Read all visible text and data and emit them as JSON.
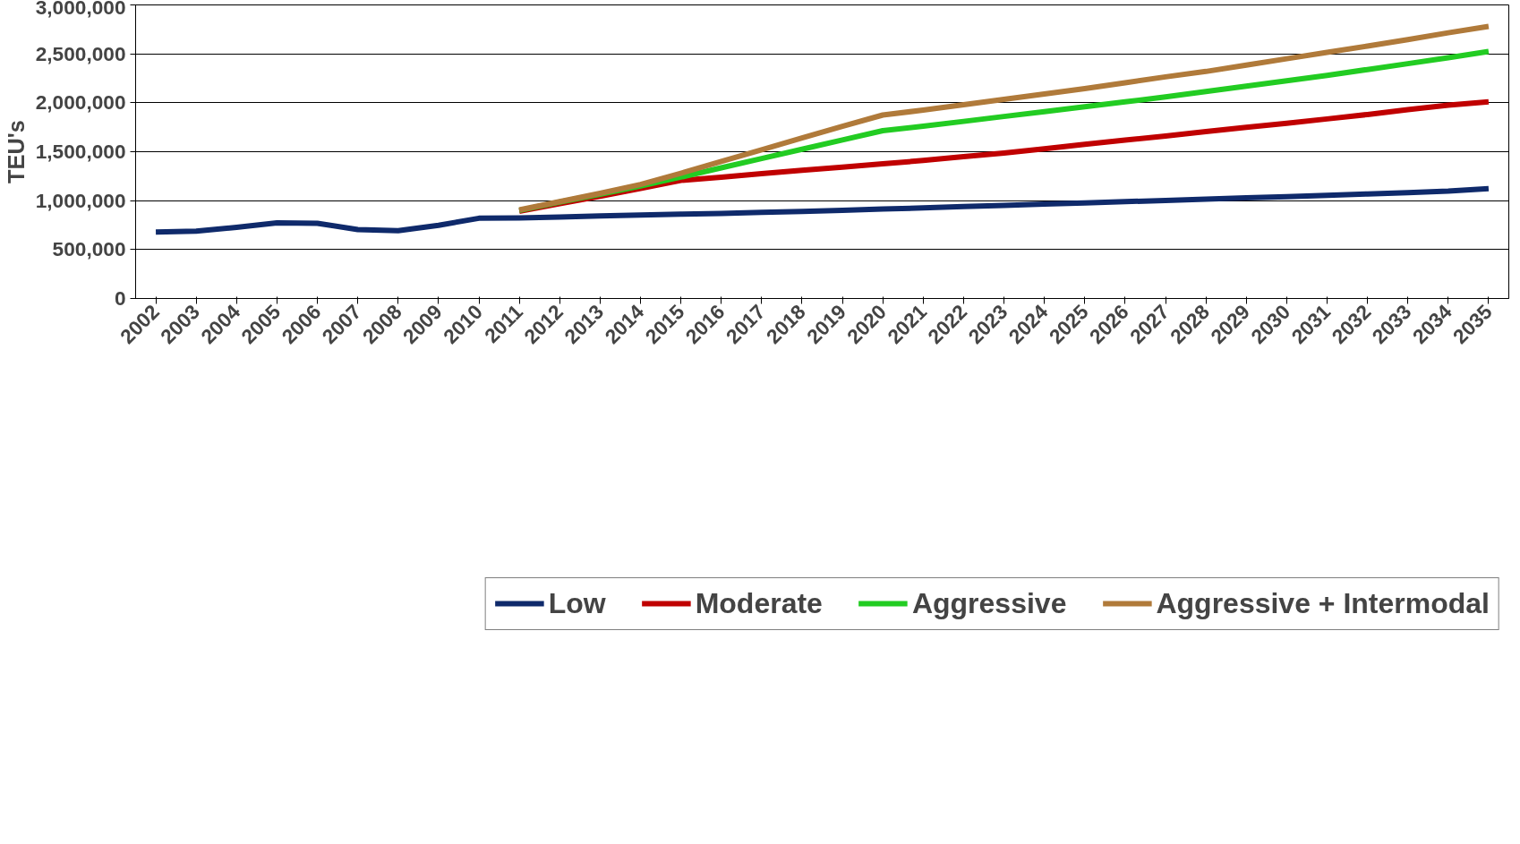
{
  "chart_data": {
    "type": "line",
    "ylabel": "TEU's",
    "categories": [
      "2002",
      "2003",
      "2004",
      "2005",
      "2006",
      "2007",
      "2008",
      "2009",
      "2010",
      "2011",
      "2012",
      "2013",
      "2014",
      "2015",
      "2016",
      "2017",
      "2018",
      "2019",
      "2020",
      "2021",
      "2022",
      "2023",
      "2024",
      "2025",
      "2026",
      "2027",
      "2028",
      "2029",
      "2030",
      "2031",
      "2032",
      "2033",
      "2034",
      "2035"
    ],
    "series": [
      {
        "name": "Low",
        "color": "#0f2a6b",
        "values": [
          680000,
          688000,
          727000,
          773000,
          769000,
          705000,
          693000,
          748000,
          820000,
          824000,
          833000,
          843000,
          852000,
          861000,
          870000,
          880000,
          890000,
          900000,
          915000,
          925000,
          940000,
          952000,
          965000,
          977000,
          990000,
          1002000,
          1015000,
          1028000,
          1040000,
          1055000,
          1068000,
          1082000,
          1097000,
          1122000
        ]
      },
      {
        "name": "Moderate",
        "color": "#c00000",
        "values": [
          null,
          null,
          null,
          null,
          null,
          null,
          null,
          null,
          null,
          892000,
          970000,
          1045000,
          1125000,
          1207000,
          1240000,
          1275000,
          1310000,
          1342000,
          1377000,
          1410000,
          1450000,
          1487000,
          1530000,
          1576000,
          1618000,
          1660000,
          1705000,
          1750000,
          1790000,
          1835000,
          1880000,
          1930000,
          1975000,
          2010000
        ]
      },
      {
        "name": "Aggressive",
        "color": "#22cc22",
        "values": [
          null,
          null,
          null,
          null,
          null,
          null,
          null,
          null,
          null,
          900000,
          985000,
          1065000,
          1150000,
          1240000,
          1335000,
          1430000,
          1525000,
          1620000,
          1715000,
          1760000,
          1810000,
          1860000,
          1910000,
          1960000,
          2010000,
          2060000,
          2115000,
          2170000,
          2225000,
          2280000,
          2340000,
          2400000,
          2460000,
          2525000
        ]
      },
      {
        "name": "Aggressive + Intermodal",
        "color": "#b07a3a",
        "values": [
          null,
          null,
          null,
          null,
          null,
          null,
          null,
          null,
          null,
          905000,
          990000,
          1075000,
          1165000,
          1280000,
          1400000,
          1520000,
          1640000,
          1760000,
          1875000,
          1925000,
          1980000,
          2035000,
          2090000,
          2145000,
          2205000,
          2265000,
          2320000,
          2385000,
          2450000,
          2515000,
          2580000,
          2645000,
          2715000,
          2780000
        ]
      }
    ],
    "ylim": [
      0,
      3000000
    ],
    "yticks": [
      {
        "value": 0,
        "label": "0"
      },
      {
        "value": 500000,
        "label": "500,000"
      },
      {
        "value": 1000000,
        "label": "1,000,000"
      },
      {
        "value": 1500000,
        "label": "1,500,000"
      },
      {
        "value": 2000000,
        "label": "2,000,000"
      },
      {
        "value": 2500000,
        "label": "2,500,000"
      },
      {
        "value": 3000000,
        "label": "3,000,000"
      }
    ],
    "grid": "y",
    "legend": "bottom",
    "marker": "none",
    "line_style": "solid"
  }
}
